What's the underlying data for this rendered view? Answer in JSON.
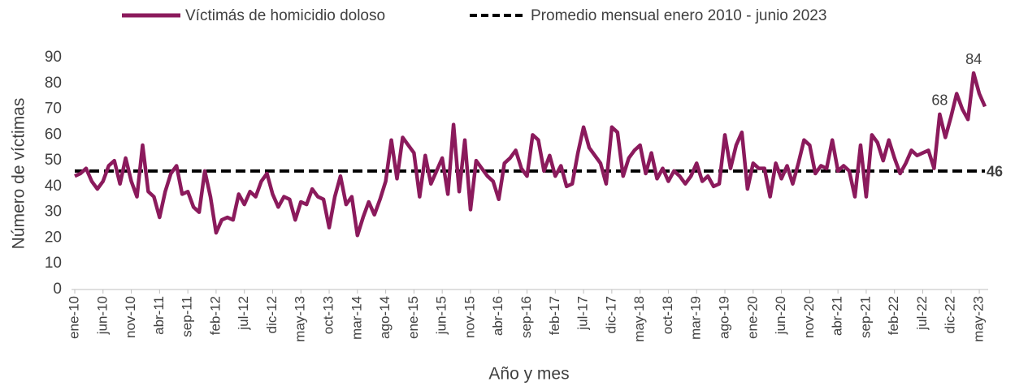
{
  "chart_data": {
    "type": "line",
    "xlabel": "Año y mes",
    "ylabel": "Número de víctimas",
    "ylim": [
      0,
      90
    ],
    "yticks": [
      0,
      10,
      20,
      30,
      40,
      50,
      60,
      70,
      80,
      90
    ],
    "grid": false,
    "legend": "top",
    "categories": [
      "ene-10",
      null,
      null,
      null,
      null,
      "jun-10",
      null,
      null,
      null,
      null,
      "nov-10",
      null,
      null,
      null,
      null,
      "abr-11",
      null,
      null,
      null,
      null,
      "sep-11",
      null,
      null,
      null,
      null,
      "feb-12",
      null,
      null,
      null,
      null,
      "jul-12",
      null,
      null,
      null,
      null,
      "dic-12",
      null,
      null,
      null,
      null,
      "may-13",
      null,
      null,
      null,
      null,
      "oct-13",
      null,
      null,
      null,
      null,
      "mar-14",
      null,
      null,
      null,
      null,
      "ago-14",
      null,
      null,
      null,
      null,
      "ene-15",
      null,
      null,
      null,
      null,
      "jun-15",
      null,
      null,
      null,
      null,
      "nov-15",
      null,
      null,
      null,
      null,
      "abr-16",
      null,
      null,
      null,
      null,
      "sep-16",
      null,
      null,
      null,
      null,
      "feb-17",
      null,
      null,
      null,
      null,
      "jul-17",
      null,
      null,
      null,
      null,
      "dic-17",
      null,
      null,
      null,
      null,
      "may-18",
      null,
      null,
      null,
      null,
      "oct-18",
      null,
      null,
      null,
      null,
      "mar-19",
      null,
      null,
      null,
      null,
      "ago-19",
      null,
      null,
      null,
      null,
      "ene-20",
      null,
      null,
      null,
      null,
      "jun-20",
      null,
      null,
      null,
      null,
      "nov-20",
      null,
      null,
      null,
      null,
      "abr-21",
      null,
      null,
      null,
      null,
      "sep-21",
      null,
      null,
      null,
      null,
      "feb-22",
      null,
      null,
      null,
      null,
      "jul-22",
      null,
      null,
      null,
      null,
      "dic-22",
      null,
      null,
      null,
      null,
      "may-23",
      null
    ],
    "series": [
      {
        "name": "Víctimás de homicidio doloso",
        "color": "#8b1a5c",
        "values": [
          44,
          45,
          47,
          42,
          39,
          42,
          48,
          50,
          41,
          51,
          42,
          36,
          56,
          38,
          36,
          28,
          38,
          45,
          48,
          37,
          38,
          32,
          30,
          46,
          36,
          22,
          27,
          28,
          27,
          37,
          33,
          38,
          36,
          42,
          45,
          37,
          32,
          36,
          35,
          27,
          34,
          33,
          39,
          36,
          35,
          24,
          36,
          44,
          33,
          36,
          21,
          28,
          34,
          29,
          35,
          42,
          58,
          43,
          59,
          56,
          53,
          36,
          52,
          41,
          46,
          51,
          37,
          64,
          38,
          58,
          31,
          50,
          47,
          44,
          42,
          35,
          49,
          51,
          54,
          47,
          44,
          60,
          58,
          46,
          52,
          44,
          48,
          40,
          41,
          53,
          63,
          55,
          52,
          49,
          41,
          63,
          61,
          44,
          51,
          54,
          56,
          45,
          53,
          43,
          47,
          42,
          46,
          44,
          41,
          44,
          49,
          42,
          44,
          40,
          41,
          60,
          47,
          56,
          61,
          39,
          49,
          47,
          47,
          36,
          49,
          43,
          48,
          41,
          49,
          58,
          56,
          45,
          48,
          47,
          58,
          46,
          48,
          46,
          36,
          56,
          36,
          60,
          57,
          50,
          58,
          51,
          45,
          49,
          54,
          52,
          53,
          54,
          47,
          68,
          59,
          67,
          76,
          70,
          66,
          84,
          76,
          71
        ],
        "value_labels": [
          null,
          null,
          null,
          null,
          null,
          null,
          null,
          null,
          null,
          null,
          null,
          null,
          null,
          null,
          null,
          null,
          null,
          null,
          null,
          null,
          null,
          null,
          null,
          null,
          null,
          null,
          null,
          null,
          null,
          null,
          null,
          null,
          null,
          null,
          null,
          null,
          null,
          null,
          null,
          null,
          null,
          null,
          null,
          null,
          null,
          null,
          null,
          null,
          null,
          null,
          null,
          null,
          null,
          null,
          null,
          null,
          null,
          null,
          null,
          null,
          null,
          null,
          null,
          null,
          null,
          null,
          null,
          null,
          null,
          null,
          null,
          null,
          null,
          null,
          null,
          null,
          null,
          null,
          null,
          null,
          null,
          null,
          null,
          null,
          null,
          null,
          null,
          null,
          null,
          null,
          null,
          null,
          null,
          null,
          null,
          null,
          null,
          null,
          null,
          null,
          null,
          null,
          null,
          null,
          null,
          null,
          null,
          null,
          null,
          null,
          null,
          null,
          null,
          null,
          null,
          null,
          null,
          null,
          null,
          null,
          null,
          null,
          null,
          null,
          null,
          null,
          null,
          null,
          null,
          null,
          null,
          null,
          null,
          null,
          null,
          null,
          null,
          null,
          null,
          null,
          null,
          null,
          null,
          null,
          null,
          null,
          null,
          null,
          null,
          null,
          null,
          null,
          null,
          "68",
          null,
          null,
          null,
          null,
          null,
          "84",
          null,
          null
        ]
      }
    ],
    "reference_line": {
      "name": "Promedio mensual enero 2010 - junio 2023",
      "color": "#000000",
      "value": 46
    }
  }
}
